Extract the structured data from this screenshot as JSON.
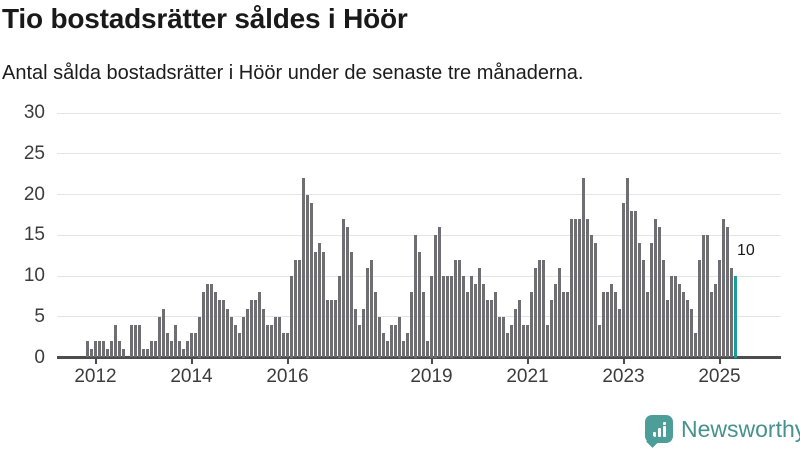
{
  "header": {
    "title": "Tio bostadsrätter såldes i Höör",
    "subtitle": "Antal sålda bostadsrätter i Höör under de senaste tre månaderna."
  },
  "chart_data": {
    "type": "bar",
    "title": "Tio bostadsrätter såldes i Höör",
    "subtitle": "Antal sålda bostadsrätter i Höör under de senaste tre månaderna.",
    "start_month": "2011-11",
    "frequency": "monthly",
    "values": [
      2,
      1,
      2,
      2,
      2,
      1,
      2,
      4,
      2,
      1,
      0,
      4,
      4,
      4,
      1,
      1,
      2,
      2,
      5,
      6,
      3,
      2,
      4,
      2,
      1,
      2,
      3,
      3,
      5,
      8,
      9,
      9,
      8,
      7,
      7,
      6,
      5,
      4,
      3,
      5,
      6,
      7,
      7,
      8,
      6,
      4,
      4,
      5,
      5,
      3,
      3,
      10,
      12,
      12,
      22,
      20,
      19,
      13,
      14,
      13,
      7,
      7,
      7,
      10,
      17,
      16,
      13,
      6,
      4,
      6,
      11,
      12,
      8,
      5,
      3,
      2,
      4,
      4,
      5,
      2,
      3,
      8,
      15,
      13,
      8,
      2,
      10,
      15,
      16,
      10,
      10,
      10,
      12,
      12,
      10,
      8,
      10,
      9,
      11,
      9,
      7,
      7,
      8,
      5,
      5,
      3,
      4,
      6,
      7,
      4,
      4,
      8,
      11,
      12,
      12,
      4,
      7,
      9,
      11,
      8,
      8,
      17,
      17,
      17,
      22,
      17,
      15,
      14,
      4,
      8,
      8,
      9,
      8,
      6,
      19,
      22,
      18,
      18,
      14,
      12,
      8,
      14,
      17,
      16,
      12,
      7,
      10,
      10,
      9,
      8,
      7,
      6,
      3,
      12,
      15,
      15,
      8,
      9,
      12,
      17,
      16,
      11,
      10
    ],
    "highlight_last": true,
    "highlight_value_label": "10",
    "ylim": [
      0,
      30
    ],
    "yticks": [
      0,
      5,
      10,
      15,
      20,
      25,
      30
    ],
    "xticks": [
      {
        "label": "2012",
        "month_index": 2
      },
      {
        "label": "2014",
        "month_index": 26
      },
      {
        "label": "2016",
        "month_index": 50
      },
      {
        "label": "2019",
        "month_index": 86
      },
      {
        "label": "2021",
        "month_index": 110
      },
      {
        "label": "2023",
        "month_index": 134
      },
      {
        "label": "2025",
        "month_index": 158
      }
    ],
    "grid": true,
    "legend": false,
    "bar_color": "#6e6e73",
    "highlight_color": "#1a9e9a",
    "gridline_color": "#e4e4e4",
    "axis_color": "#4d4d4d"
  },
  "footer": {
    "brand": "Newsworthy",
    "brand_color": "#47918e",
    "logo_icon": "bar-chart-speech-bubble-icon",
    "logo_color": "#4d9d99"
  }
}
